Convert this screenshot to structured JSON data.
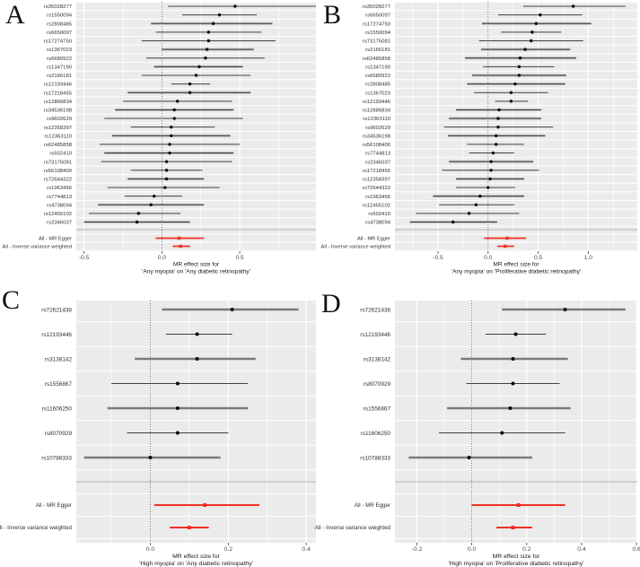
{
  "figure": {
    "panel_letters": [
      "A",
      "B",
      "C",
      "D"
    ],
    "colors": {
      "panel_background": "#ebebeb",
      "gridline": "#ffffff",
      "ci_line": "#404040",
      "ci_band": "#b4b4b4",
      "snp_point": "#0a0a0a",
      "summary": "#ee3124",
      "zero_line": "#1a1a1a",
      "separator": "#a0a0a0",
      "text": "#303030"
    }
  },
  "chart_data": [
    {
      "type": "forest",
      "letter": "A",
      "title_lines": [
        "MR effect size for",
        "'Any myopia' on 'Any diabetic retinopathy'"
      ],
      "xlim": [
        -0.55,
        0.99
      ],
      "ticks": [
        -0.5,
        0.0,
        0.5
      ],
      "tick_labels": [
        "-0.5",
        "0.0",
        "0.5"
      ],
      "minor_step": 0.25,
      "rows": [
        {
          "label": "rs35028277",
          "est": 0.47,
          "lo": 0.04,
          "hi": 0.99,
          "band": false
        },
        {
          "label": "rs1550094",
          "est": 0.37,
          "lo": 0.13,
          "hi": 0.61,
          "band": false
        },
        {
          "label": "rs2808485",
          "est": 0.33,
          "lo": -0.07,
          "hi": 0.71,
          "band": true
        },
        {
          "label": "rs6650097",
          "est": 0.3,
          "lo": -0.04,
          "hi": 0.64,
          "band": false
        },
        {
          "label": "rs17274750",
          "est": 0.3,
          "lo": -0.13,
          "hi": 0.73,
          "band": false
        },
        {
          "label": "rs1367023",
          "est": 0.29,
          "lo": 0.0,
          "hi": 0.59,
          "band": true
        },
        {
          "label": "rs6680922",
          "est": 0.28,
          "lo": -0.1,
          "hi": 0.66,
          "band": false
        },
        {
          "label": "rs1347190",
          "est": 0.24,
          "lo": -0.05,
          "hi": 0.52,
          "band": true
        },
        {
          "label": "rs2166181",
          "est": 0.22,
          "lo": -0.13,
          "hi": 0.57,
          "band": false
        },
        {
          "label": "rs12193446",
          "est": 0.18,
          "lo": 0.06,
          "hi": 0.31,
          "band": false
        },
        {
          "label": "rs17218455",
          "est": 0.18,
          "lo": -0.22,
          "hi": 0.57,
          "band": true
        },
        {
          "label": "rs12866834",
          "est": 0.1,
          "lo": -0.25,
          "hi": 0.45,
          "band": false
        },
        {
          "label": "rs34536198",
          "est": 0.08,
          "lo": -0.3,
          "hi": 0.46,
          "band": true
        },
        {
          "label": "rs9602629",
          "est": 0.08,
          "lo": -0.37,
          "hi": 0.52,
          "band": false
        },
        {
          "label": "rs12358397",
          "est": 0.06,
          "lo": -0.2,
          "hi": 0.34,
          "band": false
        },
        {
          "label": "rs12363110",
          "est": 0.06,
          "lo": -0.32,
          "hi": 0.44,
          "band": true
        },
        {
          "label": "rs62485858",
          "est": 0.05,
          "lo": -0.4,
          "hi": 0.5,
          "band": false
        },
        {
          "label": "rs502410",
          "est": 0.05,
          "lo": -0.37,
          "hi": 0.46,
          "band": true
        },
        {
          "label": "rs73175081",
          "est": 0.03,
          "lo": -0.39,
          "hi": 0.45,
          "band": false
        },
        {
          "label": "rs56108400",
          "est": 0.03,
          "lo": -0.2,
          "hi": 0.26,
          "band": false
        },
        {
          "label": "rs72644322",
          "est": 0.03,
          "lo": -0.22,
          "hi": 0.27,
          "band": true
        },
        {
          "label": "rs1963456",
          "est": 0.02,
          "lo": -0.35,
          "hi": 0.37,
          "band": false
        },
        {
          "label": "rs7744813",
          "est": -0.05,
          "lo": -0.24,
          "hi": 0.13,
          "band": false
        },
        {
          "label": "rs4738094",
          "est": -0.07,
          "lo": -0.41,
          "hi": 0.27,
          "band": true
        },
        {
          "label": "rs12455102",
          "est": -0.15,
          "lo": -0.47,
          "hi": 0.12,
          "band": false
        },
        {
          "label": "rs2346037",
          "est": -0.16,
          "lo": -0.5,
          "hi": 0.18,
          "band": true
        }
      ],
      "summary": [
        {
          "label": "All - MR Egger",
          "est": 0.11,
          "lo": -0.04,
          "hi": 0.27
        },
        {
          "label": "All - Inverse variance weighted",
          "est": 0.12,
          "lo": 0.07,
          "hi": 0.18
        }
      ]
    },
    {
      "type": "forest",
      "letter": "B",
      "title_lines": [
        "MR effect size for",
        "'Any myopia' on 'Proliferative diabetic retinopathy'"
      ],
      "xlim": [
        -0.93,
        1.49
      ],
      "ticks": [
        -0.5,
        0.0,
        0.5,
        1.0
      ],
      "tick_labels": [
        "-0.5",
        "0.0",
        "0.5",
        "1.0"
      ],
      "minor_step": 0.25,
      "rows": [
        {
          "label": "rs35028277",
          "est": 0.85,
          "lo": 0.35,
          "hi": 1.37,
          "band": false
        },
        {
          "label": "rs6650097",
          "est": 0.52,
          "lo": 0.1,
          "hi": 0.94,
          "band": false
        },
        {
          "label": "rs17274750",
          "est": 0.48,
          "lo": -0.06,
          "hi": 1.03,
          "band": true
        },
        {
          "label": "rs1550094",
          "est": 0.44,
          "lo": 0.13,
          "hi": 0.73,
          "band": false
        },
        {
          "label": "rs73175081",
          "est": 0.43,
          "lo": -0.09,
          "hi": 0.95,
          "band": false
        },
        {
          "label": "rs2166181",
          "est": 0.37,
          "lo": -0.07,
          "hi": 0.82,
          "band": true
        },
        {
          "label": "rs62485858",
          "est": 0.32,
          "lo": -0.23,
          "hi": 0.88,
          "band": true
        },
        {
          "label": "rs1347190",
          "est": 0.31,
          "lo": -0.05,
          "hi": 0.66,
          "band": false
        },
        {
          "label": "rs6680922",
          "est": 0.31,
          "lo": -0.16,
          "hi": 0.78,
          "band": true
        },
        {
          "label": "rs2808485",
          "est": 0.27,
          "lo": -0.21,
          "hi": 0.77,
          "band": true
        },
        {
          "label": "rs1367023",
          "est": 0.23,
          "lo": -0.14,
          "hi": 0.6,
          "band": false
        },
        {
          "label": "rs12193446",
          "est": 0.23,
          "lo": 0.07,
          "hi": 0.4,
          "band": false
        },
        {
          "label": "rs12886834",
          "est": 0.11,
          "lo": -0.32,
          "hi": 0.53,
          "band": true
        },
        {
          "label": "rs12363110",
          "est": 0.1,
          "lo": -0.39,
          "hi": 0.53,
          "band": true
        },
        {
          "label": "rs9602629",
          "est": 0.1,
          "lo": -0.44,
          "hi": 0.65,
          "band": false
        },
        {
          "label": "rs34536198",
          "est": 0.08,
          "lo": -0.4,
          "hi": 0.57,
          "band": true
        },
        {
          "label": "rs56108400",
          "est": 0.08,
          "lo": -0.21,
          "hi": 0.36,
          "band": false
        },
        {
          "label": "rs7744813",
          "est": 0.05,
          "lo": -0.19,
          "hi": 0.26,
          "band": false
        },
        {
          "label": "rs2346037",
          "est": 0.03,
          "lo": -0.39,
          "hi": 0.45,
          "band": true
        },
        {
          "label": "rs17218455",
          "est": 0.03,
          "lo": -0.46,
          "hi": 0.51,
          "band": false
        },
        {
          "label": "rs12358397",
          "est": 0.02,
          "lo": -0.32,
          "hi": 0.36,
          "band": true
        },
        {
          "label": "rs72644322",
          "est": 0.0,
          "lo": -0.32,
          "hi": 0.27,
          "band": false
        },
        {
          "label": "rs1963456",
          "est": -0.08,
          "lo": -0.55,
          "hi": 0.36,
          "band": true
        },
        {
          "label": "rs12455102",
          "est": -0.12,
          "lo": -0.49,
          "hi": 0.26,
          "band": false
        },
        {
          "label": "rs502410",
          "est": -0.19,
          "lo": -0.72,
          "hi": 0.31,
          "band": false
        },
        {
          "label": "rs4738094",
          "est": -0.35,
          "lo": -0.78,
          "hi": 0.09,
          "band": true
        }
      ],
      "summary": [
        {
          "label": "All - MR Egger",
          "est": 0.19,
          "lo": -0.04,
          "hi": 0.38
        },
        {
          "label": "All - Inverse variance weighted",
          "est": 0.17,
          "lo": 0.09,
          "hi": 0.26
        }
      ]
    },
    {
      "type": "forest",
      "letter": "C",
      "title_lines": [
        "MR effect size for",
        "'High myopia' on 'Any diabetic retinopathy'"
      ],
      "xlim": [
        -0.19,
        0.425
      ],
      "ticks": [
        0.0,
        0.2,
        0.4
      ],
      "tick_labels": [
        "0.0",
        "0.2",
        "0.4"
      ],
      "minor_step": 0.1,
      "rows": [
        {
          "label": "rs72621438",
          "est": 0.21,
          "lo": 0.03,
          "hi": 0.38,
          "band": true
        },
        {
          "label": "rs12193446",
          "est": 0.12,
          "lo": 0.04,
          "hi": 0.21,
          "band": false
        },
        {
          "label": "rs3138142",
          "est": 0.12,
          "lo": -0.04,
          "hi": 0.27,
          "band": true
        },
        {
          "label": "rs1556867",
          "est": 0.07,
          "lo": -0.1,
          "hi": 0.25,
          "band": false
        },
        {
          "label": "rs11606250",
          "est": 0.07,
          "lo": -0.11,
          "hi": 0.25,
          "band": true
        },
        {
          "label": "rs8070929",
          "est": 0.07,
          "lo": -0.06,
          "hi": 0.2,
          "band": false
        },
        {
          "label": "rs10788333",
          "est": 0.0,
          "lo": -0.17,
          "hi": 0.18,
          "band": true
        }
      ],
      "summary": [
        {
          "label": "All - MR Egger",
          "est": 0.14,
          "lo": 0.01,
          "hi": 0.28
        },
        {
          "label": "All - Inverse variance weighted",
          "est": 0.1,
          "lo": 0.05,
          "hi": 0.15
        }
      ]
    },
    {
      "type": "forest",
      "letter": "D",
      "title_lines": [
        "MR effect size for",
        "'High myopia' on 'Proliferative diabetic retinopathy'"
      ],
      "xlim": [
        -0.28,
        0.603
      ],
      "ticks": [
        -0.2,
        0.0,
        0.2,
        0.4,
        0.6
      ],
      "tick_labels": [
        "-0.2",
        "0.0",
        "0.2",
        "0.4",
        "0.6"
      ],
      "minor_step": 0.1,
      "rows": [
        {
          "label": "rs72621438",
          "est": 0.34,
          "lo": 0.11,
          "hi": 0.56,
          "band": true
        },
        {
          "label": "rs12193446",
          "est": 0.16,
          "lo": 0.05,
          "hi": 0.27,
          "band": false
        },
        {
          "label": "rs3138142",
          "est": 0.15,
          "lo": -0.04,
          "hi": 0.35,
          "band": true
        },
        {
          "label": "rs8070929",
          "est": 0.15,
          "lo": -0.02,
          "hi": 0.32,
          "band": false
        },
        {
          "label": "rs1556867",
          "est": 0.14,
          "lo": -0.09,
          "hi": 0.36,
          "band": true
        },
        {
          "label": "rs11606250",
          "est": 0.11,
          "lo": -0.12,
          "hi": 0.34,
          "band": false
        },
        {
          "label": "rs10788333",
          "est": -0.01,
          "lo": -0.23,
          "hi": 0.22,
          "band": true
        }
      ],
      "summary": [
        {
          "label": "All - MR Egger",
          "est": 0.17,
          "lo": 0.0,
          "hi": 0.34
        },
        {
          "label": "All - Inverse variance weighted",
          "est": 0.15,
          "lo": 0.09,
          "hi": 0.22
        }
      ]
    }
  ]
}
